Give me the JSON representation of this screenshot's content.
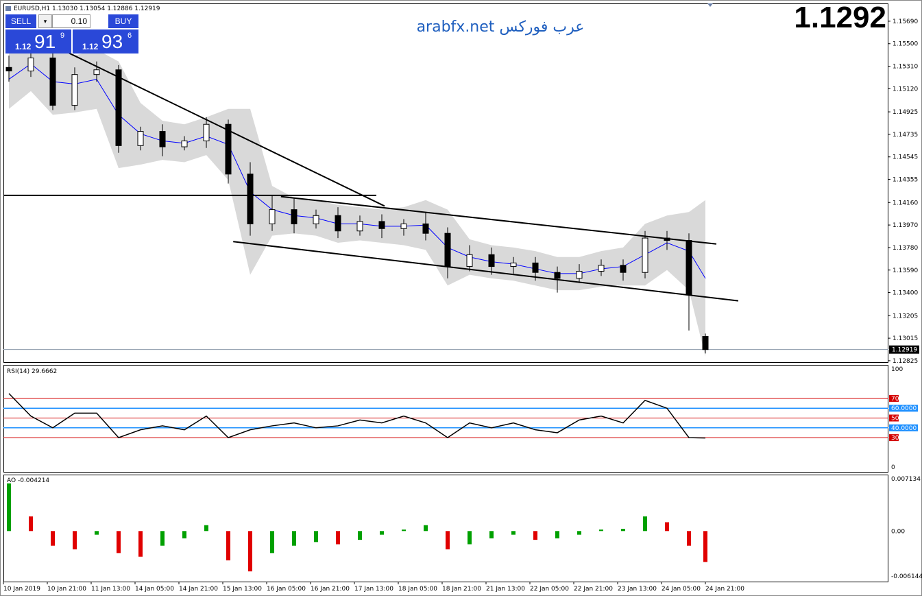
{
  "chart_data": {
    "type": "candlestick",
    "quote": {
      "symbol": "EURUSD,H1",
      "open": "1.13030",
      "high": "1.13054",
      "low": "1.12886",
      "close": "1.12919"
    },
    "big_price": "1.1292",
    "current_price": 1.12919,
    "xlim": [
      -1,
      160
    ],
    "xticks": [
      {
        "value": -1,
        "label": "10 Jan 2019"
      },
      {
        "value": 7,
        "label": "10 Jan 21:00"
      },
      {
        "value": 15,
        "label": "11 Jan 13:00"
      },
      {
        "value": 23,
        "label": "14 Jan 05:00"
      },
      {
        "value": 31,
        "label": "14 Jan 21:00"
      },
      {
        "value": 39,
        "label": "15 Jan 13:00"
      },
      {
        "value": 47,
        "label": "16 Jan 05:00"
      },
      {
        "value": 55,
        "label": "16 Jan 21:00"
      },
      {
        "value": 63,
        "label": "17 Jan 13:00"
      },
      {
        "value": 71,
        "label": "18 Jan 05:00"
      },
      {
        "value": 79,
        "label": "18 Jan 21:00"
      },
      {
        "value": 87,
        "label": "21 Jan 13:00"
      },
      {
        "value": 95,
        "label": "22 Jan 05:00"
      },
      {
        "value": 103,
        "label": "22 Jan 21:00"
      },
      {
        "value": 111,
        "label": "23 Jan 13:00"
      },
      {
        "value": 119,
        "label": "24 Jan 05:00"
      },
      {
        "value": 127,
        "label": "24 Jan 21:00"
      }
    ],
    "ylim": [
      1.12813,
      1.1584
    ],
    "yticks": [
      {
        "value": 1.1569,
        "label": "1.15690"
      },
      {
        "value": 1.155,
        "label": "1.15500"
      },
      {
        "value": 1.1531,
        "label": "1.15310"
      },
      {
        "value": 1.1512,
        "label": "1.15120"
      },
      {
        "value": 1.14925,
        "label": "1.14925"
      },
      {
        "value": 1.14735,
        "label": "1.14735"
      },
      {
        "value": 1.14545,
        "label": "1.14545"
      },
      {
        "value": 1.14355,
        "label": "1.14355"
      },
      {
        "value": 1.1416,
        "label": "1.14160"
      },
      {
        "value": 1.1397,
        "label": "1.13970"
      },
      {
        "value": 1.1378,
        "label": "1.13780"
      },
      {
        "value": 1.1359,
        "label": "1.13590"
      },
      {
        "value": 1.134,
        "label": "1.13400"
      },
      {
        "value": 1.13205,
        "label": "1.13205"
      },
      {
        "value": 1.13015,
        "label": "1.13015"
      },
      {
        "value": 1.12825,
        "label": "1.12825"
      }
    ],
    "x": [
      0,
      4,
      8,
      12,
      16,
      20,
      24,
      28,
      32,
      36,
      40,
      44,
      48,
      52,
      56,
      60,
      64,
      68,
      72,
      76,
      80,
      84,
      88,
      92,
      96,
      100,
      104,
      108,
      112,
      116,
      120,
      124,
      127
    ],
    "ohlc": {
      "open": [
        1.153,
        1.1527,
        1.1538,
        1.1498,
        1.1524,
        1.1528,
        1.1464,
        1.1476,
        1.1463,
        1.1468,
        1.1482,
        1.144,
        1.1398,
        1.141,
        1.1398,
        1.1405,
        1.1392,
        1.14,
        1.1394,
        1.1398,
        1.139,
        1.1362,
        1.1372,
        1.1362,
        1.1365,
        1.1357,
        1.1352,
        1.1358,
        1.1363,
        1.1357,
        1.1386,
        1.1384,
        1.1303
      ],
      "high": [
        1.154,
        1.1545,
        1.1542,
        1.153,
        1.1535,
        1.1532,
        1.148,
        1.1482,
        1.1472,
        1.1488,
        1.1486,
        1.145,
        1.1422,
        1.142,
        1.141,
        1.1412,
        1.1405,
        1.1406,
        1.1402,
        1.1408,
        1.1395,
        1.138,
        1.1378,
        1.137,
        1.137,
        1.1362,
        1.1364,
        1.1368,
        1.1368,
        1.1392,
        1.1392,
        1.139,
        1.13054
      ],
      "low": [
        1.1518,
        1.1522,
        1.1494,
        1.1494,
        1.1518,
        1.1458,
        1.146,
        1.1455,
        1.146,
        1.1462,
        1.1432,
        1.1388,
        1.1392,
        1.139,
        1.1394,
        1.1386,
        1.1388,
        1.1386,
        1.1388,
        1.1384,
        1.1352,
        1.1358,
        1.1355,
        1.1356,
        1.135,
        1.134,
        1.1348,
        1.1354,
        1.135,
        1.1352,
        1.1376,
        1.1308,
        1.12886
      ],
      "close": [
        1.1527,
        1.1538,
        1.1498,
        1.1524,
        1.1528,
        1.1464,
        1.1476,
        1.1463,
        1.1468,
        1.1482,
        1.144,
        1.1398,
        1.141,
        1.1398,
        1.1405,
        1.1392,
        1.14,
        1.1394,
        1.1398,
        1.139,
        1.1362,
        1.1372,
        1.1362,
        1.1365,
        1.1357,
        1.1352,
        1.1358,
        1.1363,
        1.1357,
        1.1386,
        1.1384,
        1.1338,
        1.12919
      ]
    },
    "bands": {
      "upper": [
        1.1545,
        1.1555,
        1.155,
        1.154,
        1.1545,
        1.1535,
        1.15,
        1.1485,
        1.1482,
        1.1488,
        1.1495,
        1.1495,
        1.143,
        1.142,
        1.1418,
        1.1414,
        1.1412,
        1.141,
        1.1412,
        1.1418,
        1.141,
        1.1385,
        1.138,
        1.1378,
        1.1375,
        1.137,
        1.137,
        1.1375,
        1.1378,
        1.1398,
        1.1405,
        1.1408,
        1.1418
      ],
      "middle": [
        1.152,
        1.1533,
        1.1518,
        1.1516,
        1.152,
        1.149,
        1.1474,
        1.1468,
        1.1466,
        1.1472,
        1.1465,
        1.1425,
        1.141,
        1.1405,
        1.1403,
        1.1398,
        1.1398,
        1.1396,
        1.1396,
        1.1397,
        1.1378,
        1.137,
        1.1366,
        1.1364,
        1.136,
        1.1356,
        1.1356,
        1.136,
        1.1362,
        1.1372,
        1.1382,
        1.1375,
        1.1352
      ],
      "lower": [
        1.1495,
        1.151,
        1.149,
        1.1492,
        1.1495,
        1.1445,
        1.1448,
        1.1452,
        1.145,
        1.1456,
        1.1435,
        1.1355,
        1.1388,
        1.139,
        1.1388,
        1.1382,
        1.1384,
        1.1382,
        1.138,
        1.1376,
        1.1346,
        1.1355,
        1.1352,
        1.135,
        1.1346,
        1.1342,
        1.1342,
        1.1345,
        1.1346,
        1.1346,
        1.1359,
        1.1342,
        1.1286
      ]
    },
    "colors": {
      "up": "#ffffff",
      "down": "#000000",
      "band": "#d9d9d9",
      "middle": "#0000ff",
      "line": "#000000",
      "current": "#8c9aaa"
    },
    "lines": [
      {
        "x": [
          11,
          68.5
        ],
        "y": [
          1.1542,
          1.1413
        ]
      },
      {
        "x": [
          -1,
          67
        ],
        "y": [
          1.1422,
          1.1422
        ]
      },
      {
        "x": [
          49.6,
          129
        ],
        "y": [
          1.1421,
          1.1381
        ]
      },
      {
        "x": [
          40.9,
          133
        ],
        "y": [
          1.1383,
          1.1333
        ]
      }
    ],
    "rsi": {
      "name": "RSI(14)",
      "ylim": [
        0,
        100
      ],
      "yticks": [
        0,
        100
      ],
      "values": [
        75,
        52,
        40,
        55,
        55,
        30,
        38,
        42,
        38,
        52,
        30,
        38,
        42,
        45,
        40,
        42,
        48,
        45,
        52,
        45,
        30,
        45,
        40,
        45,
        38,
        35,
        48,
        52,
        45,
        68,
        60,
        30,
        29.6662
      ],
      "levels": [
        70,
        {
          "value": 60,
          "label": "60.0000"
        },
        50,
        {
          "value": 40,
          "label": "40.0000"
        },
        30
      ],
      "level_colors": [
        "#d40000",
        "#1e90ff",
        "#d40000",
        "#1e90ff",
        "#d40000"
      ],
      "color": "#000000"
    },
    "ao": {
      "name": "AO",
      "ylim": [
        -0.006144,
        0.007134
      ],
      "yticks": [
        0.007134,
        {
          "value": 0,
          "label": "0.00"
        },
        -0.006144
      ],
      "values": [
        0.0065,
        0.002,
        -0.002,
        -0.0025,
        -0.0005,
        -0.003,
        -0.0035,
        -0.002,
        -0.001,
        0.0008,
        -0.004,
        -0.0055,
        -0.003,
        -0.002,
        -0.0015,
        -0.0018,
        -0.0012,
        -0.0005,
        0.0002,
        0.0008,
        -0.0025,
        -0.0018,
        -0.001,
        -0.0005,
        -0.0012,
        -0.001,
        -0.0005,
        0.0002,
        0.0003,
        0.002,
        0.0012,
        -0.002,
        -0.004214
      ],
      "up_color": "#00a000",
      "down_color": "#e00000"
    }
  },
  "watermark": "arabfx.net عرب فوركس",
  "trade_panel": {
    "sell": "SELL",
    "buy": "BUY",
    "lots": "0.10",
    "bid": {
      "big": "1.12",
      "main": "91",
      "pip": "9"
    },
    "ask": {
      "big": "1.12",
      "main": "93",
      "pip": "6"
    }
  }
}
